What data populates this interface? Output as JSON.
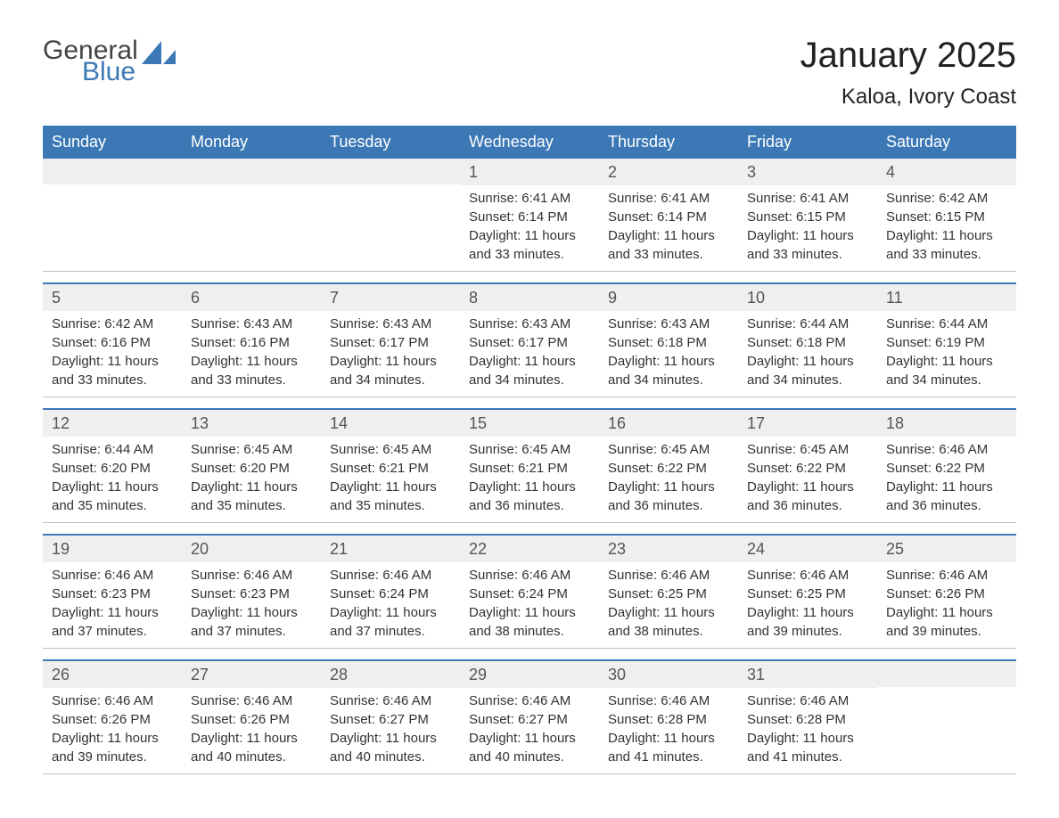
{
  "logo": {
    "word1": "General",
    "word2": "Blue",
    "sail_color": "#3b78b5"
  },
  "header": {
    "title": "January 2025",
    "subtitle": "Kaloa, Ivory Coast"
  },
  "colors": {
    "header_bg": "#3b78b5",
    "header_fg": "#ffffff",
    "day_num_bg": "#efefef",
    "day_num_fg": "#555555",
    "body_fg": "#333333",
    "week_border_top": "#3b78b5",
    "week_border_bottom": "#bfbfbf",
    "background": "#ffffff"
  },
  "weekdays": [
    "Sunday",
    "Monday",
    "Tuesday",
    "Wednesday",
    "Thursday",
    "Friday",
    "Saturday"
  ],
  "weeks": [
    [
      null,
      null,
      null,
      {
        "n": "1",
        "sunrise": "Sunrise: 6:41 AM",
        "sunset": "Sunset: 6:14 PM",
        "daylight": "Daylight: 11 hours and 33 minutes."
      },
      {
        "n": "2",
        "sunrise": "Sunrise: 6:41 AM",
        "sunset": "Sunset: 6:14 PM",
        "daylight": "Daylight: 11 hours and 33 minutes."
      },
      {
        "n": "3",
        "sunrise": "Sunrise: 6:41 AM",
        "sunset": "Sunset: 6:15 PM",
        "daylight": "Daylight: 11 hours and 33 minutes."
      },
      {
        "n": "4",
        "sunrise": "Sunrise: 6:42 AM",
        "sunset": "Sunset: 6:15 PM",
        "daylight": "Daylight: 11 hours and 33 minutes."
      }
    ],
    [
      {
        "n": "5",
        "sunrise": "Sunrise: 6:42 AM",
        "sunset": "Sunset: 6:16 PM",
        "daylight": "Daylight: 11 hours and 33 minutes."
      },
      {
        "n": "6",
        "sunrise": "Sunrise: 6:43 AM",
        "sunset": "Sunset: 6:16 PM",
        "daylight": "Daylight: 11 hours and 33 minutes."
      },
      {
        "n": "7",
        "sunrise": "Sunrise: 6:43 AM",
        "sunset": "Sunset: 6:17 PM",
        "daylight": "Daylight: 11 hours and 34 minutes."
      },
      {
        "n": "8",
        "sunrise": "Sunrise: 6:43 AM",
        "sunset": "Sunset: 6:17 PM",
        "daylight": "Daylight: 11 hours and 34 minutes."
      },
      {
        "n": "9",
        "sunrise": "Sunrise: 6:43 AM",
        "sunset": "Sunset: 6:18 PM",
        "daylight": "Daylight: 11 hours and 34 minutes."
      },
      {
        "n": "10",
        "sunrise": "Sunrise: 6:44 AM",
        "sunset": "Sunset: 6:18 PM",
        "daylight": "Daylight: 11 hours and 34 minutes."
      },
      {
        "n": "11",
        "sunrise": "Sunrise: 6:44 AM",
        "sunset": "Sunset: 6:19 PM",
        "daylight": "Daylight: 11 hours and 34 minutes."
      }
    ],
    [
      {
        "n": "12",
        "sunrise": "Sunrise: 6:44 AM",
        "sunset": "Sunset: 6:20 PM",
        "daylight": "Daylight: 11 hours and 35 minutes."
      },
      {
        "n": "13",
        "sunrise": "Sunrise: 6:45 AM",
        "sunset": "Sunset: 6:20 PM",
        "daylight": "Daylight: 11 hours and 35 minutes."
      },
      {
        "n": "14",
        "sunrise": "Sunrise: 6:45 AM",
        "sunset": "Sunset: 6:21 PM",
        "daylight": "Daylight: 11 hours and 35 minutes."
      },
      {
        "n": "15",
        "sunrise": "Sunrise: 6:45 AM",
        "sunset": "Sunset: 6:21 PM",
        "daylight": "Daylight: 11 hours and 36 minutes."
      },
      {
        "n": "16",
        "sunrise": "Sunrise: 6:45 AM",
        "sunset": "Sunset: 6:22 PM",
        "daylight": "Daylight: 11 hours and 36 minutes."
      },
      {
        "n": "17",
        "sunrise": "Sunrise: 6:45 AM",
        "sunset": "Sunset: 6:22 PM",
        "daylight": "Daylight: 11 hours and 36 minutes."
      },
      {
        "n": "18",
        "sunrise": "Sunrise: 6:46 AM",
        "sunset": "Sunset: 6:22 PM",
        "daylight": "Daylight: 11 hours and 36 minutes."
      }
    ],
    [
      {
        "n": "19",
        "sunrise": "Sunrise: 6:46 AM",
        "sunset": "Sunset: 6:23 PM",
        "daylight": "Daylight: 11 hours and 37 minutes."
      },
      {
        "n": "20",
        "sunrise": "Sunrise: 6:46 AM",
        "sunset": "Sunset: 6:23 PM",
        "daylight": "Daylight: 11 hours and 37 minutes."
      },
      {
        "n": "21",
        "sunrise": "Sunrise: 6:46 AM",
        "sunset": "Sunset: 6:24 PM",
        "daylight": "Daylight: 11 hours and 37 minutes."
      },
      {
        "n": "22",
        "sunrise": "Sunrise: 6:46 AM",
        "sunset": "Sunset: 6:24 PM",
        "daylight": "Daylight: 11 hours and 38 minutes."
      },
      {
        "n": "23",
        "sunrise": "Sunrise: 6:46 AM",
        "sunset": "Sunset: 6:25 PM",
        "daylight": "Daylight: 11 hours and 38 minutes."
      },
      {
        "n": "24",
        "sunrise": "Sunrise: 6:46 AM",
        "sunset": "Sunset: 6:25 PM",
        "daylight": "Daylight: 11 hours and 39 minutes."
      },
      {
        "n": "25",
        "sunrise": "Sunrise: 6:46 AM",
        "sunset": "Sunset: 6:26 PM",
        "daylight": "Daylight: 11 hours and 39 minutes."
      }
    ],
    [
      {
        "n": "26",
        "sunrise": "Sunrise: 6:46 AM",
        "sunset": "Sunset: 6:26 PM",
        "daylight": "Daylight: 11 hours and 39 minutes."
      },
      {
        "n": "27",
        "sunrise": "Sunrise: 6:46 AM",
        "sunset": "Sunset: 6:26 PM",
        "daylight": "Daylight: 11 hours and 40 minutes."
      },
      {
        "n": "28",
        "sunrise": "Sunrise: 6:46 AM",
        "sunset": "Sunset: 6:27 PM",
        "daylight": "Daylight: 11 hours and 40 minutes."
      },
      {
        "n": "29",
        "sunrise": "Sunrise: 6:46 AM",
        "sunset": "Sunset: 6:27 PM",
        "daylight": "Daylight: 11 hours and 40 minutes."
      },
      {
        "n": "30",
        "sunrise": "Sunrise: 6:46 AM",
        "sunset": "Sunset: 6:28 PM",
        "daylight": "Daylight: 11 hours and 41 minutes."
      },
      {
        "n": "31",
        "sunrise": "Sunrise: 6:46 AM",
        "sunset": "Sunset: 6:28 PM",
        "daylight": "Daylight: 11 hours and 41 minutes."
      },
      null
    ]
  ]
}
